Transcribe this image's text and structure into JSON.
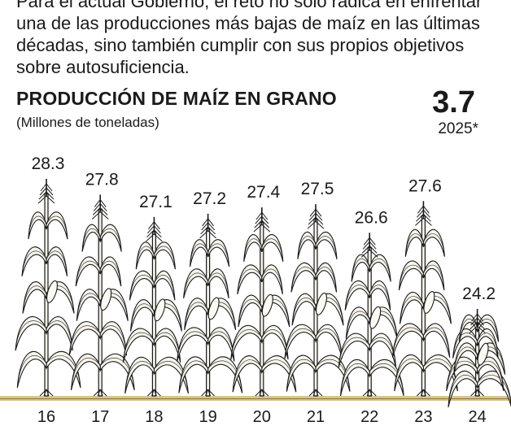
{
  "intro_lines": [
    "Para el actual Gobierno, el reto no solo radica en enfrentar",
    "una de las producciones más bajas de maíz en las últimas",
    "décadas, sino también cumplir con sus propios objetivos",
    "sobre autosuficiencia."
  ],
  "highlight": {
    "value": "3.7",
    "label": "2025*"
  },
  "colors": {
    "ground": "#d9c48c",
    "ground_line": "#8a7640",
    "ink": "#1a1a1a"
  },
  "chart_data": {
    "type": "bar",
    "title": "PRODUCCIÓN DE MAÍZ EN GRANO",
    "subtitle": "(Millones de toneladas)",
    "categories": [
      "16",
      "17",
      "18",
      "19",
      "20",
      "21",
      "22",
      "23",
      "24"
    ],
    "values": [
      28.3,
      27.8,
      27.1,
      27.2,
      27.4,
      27.5,
      26.6,
      27.6,
      24.2
    ],
    "value_labels": [
      "28.3",
      "27.8",
      "27.1",
      "27.2",
      "27.4",
      "27.5",
      "26.6",
      "27.6",
      "24.2"
    ],
    "mark": "corn-plant",
    "grid": false,
    "legend": "none"
  }
}
